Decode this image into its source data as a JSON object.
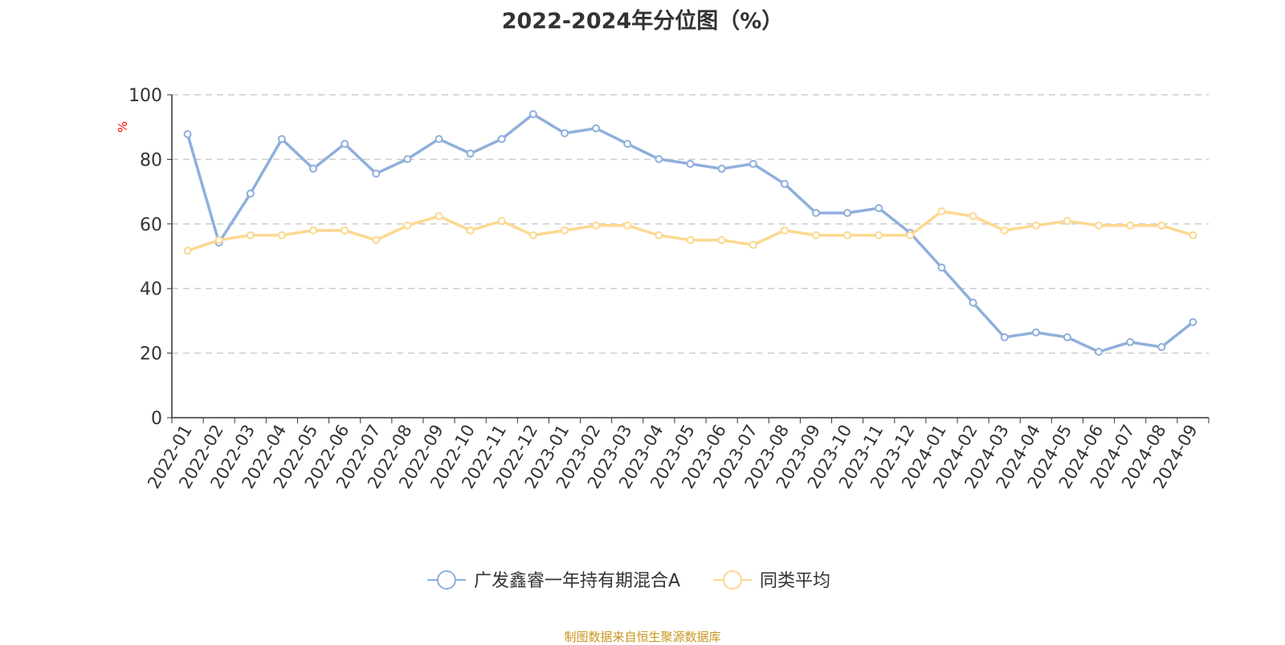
{
  "chart_data": {
    "type": "line",
    "title": "2022-2024年分位图（%）",
    "ylabel": "%",
    "ylim": [
      0,
      100
    ],
    "yticks": [
      0,
      20,
      40,
      60,
      80,
      100
    ],
    "grid": "horizontal dashed",
    "legend_placement": "bottom",
    "categories": [
      "2022-01",
      "2022-02",
      "2022-03",
      "2022-04",
      "2022-05",
      "2022-06",
      "2022-07",
      "2022-08",
      "2022-09",
      "2022-10",
      "2022-11",
      "2022-12",
      "2023-01",
      "2023-02",
      "2023-03",
      "2023-04",
      "2023-05",
      "2023-06",
      "2023-07",
      "2023-08",
      "2023-09",
      "2023-10",
      "2023-11",
      "2023-12",
      "2024-01",
      "2024-02",
      "2024-03",
      "2024-04",
      "2024-05",
      "2024-06",
      "2024-07",
      "2024-08",
      "2024-09"
    ],
    "series": [
      {
        "name": "广发鑫睿一年持有期混合A",
        "color": "#8fafdc",
        "values": [
          87.8,
          54.2,
          69.4,
          86.3,
          77.1,
          84.8,
          75.6,
          80.1,
          86.3,
          81.8,
          86.3,
          94.0,
          88.1,
          89.6,
          84.8,
          80.1,
          78.6,
          77.1,
          78.6,
          72.4,
          63.4,
          63.4,
          64.9,
          57.2,
          46.5,
          35.6,
          24.9,
          26.4,
          24.9,
          20.4,
          23.4,
          21.9,
          29.6
        ]
      },
      {
        "name": "同类平均",
        "color": "#fcd890",
        "values": [
          51.7,
          55.0,
          56.5,
          56.5,
          58.0,
          58.0,
          55.0,
          59.5,
          62.4,
          58.0,
          60.9,
          56.5,
          58.0,
          59.5,
          59.5,
          56.5,
          55.0,
          55.0,
          53.5,
          58.0,
          56.5,
          56.5,
          56.5,
          56.5,
          63.9,
          62.4,
          58.0,
          59.5,
          60.9,
          59.5,
          59.5,
          59.5,
          56.5
        ]
      }
    ]
  },
  "source": "制图数据来自恒生聚源数据库"
}
